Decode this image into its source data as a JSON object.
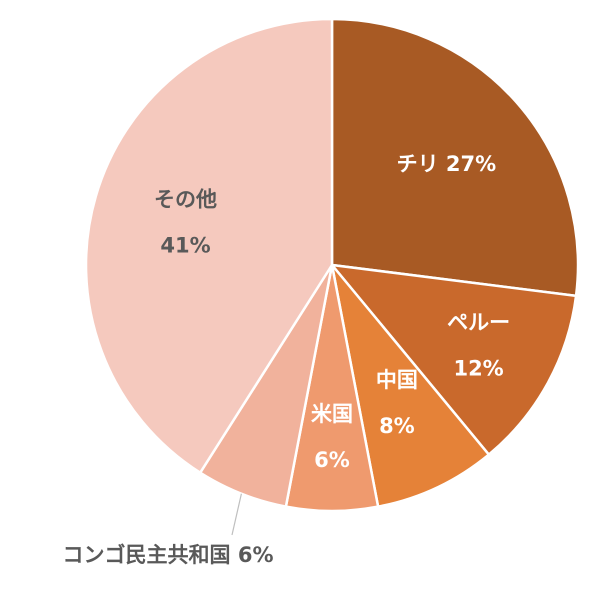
{
  "chart_data": {
    "type": "pie",
    "title": "",
    "start_angle_deg": 0,
    "direction": "clockwise",
    "slices": [
      {
        "name": "チリ",
        "value": 27,
        "label_line1": "チリ 27%",
        "label_line2": "",
        "color": "#A85A24",
        "text_color": "#ffffff",
        "outside": false
      },
      {
        "name": "ペルー",
        "value": 12,
        "label_line1": "ペルー",
        "label_line2": "12%",
        "color": "#C9692C",
        "text_color": "#ffffff",
        "outside": false
      },
      {
        "name": "中国",
        "value": 8,
        "label_line1": "中国",
        "label_line2": "8%",
        "color": "#E58238",
        "text_color": "#ffffff",
        "outside": false
      },
      {
        "name": "米国",
        "value": 6,
        "label_line1": "米国",
        "label_line2": "6%",
        "color": "#EF9A6E",
        "text_color": "#ffffff",
        "outside": false
      },
      {
        "name": "コンゴ民主共和国",
        "value": 6,
        "label_line1": "コンゴ民主共和国 6%",
        "label_line2": "",
        "color": "#F1B29C",
        "text_color": "#595959",
        "outside": true
      },
      {
        "name": "その他",
        "value": 41,
        "label_line1": "その他",
        "label_line2": "41%",
        "color": "#F5C9BE",
        "text_color": "#595959",
        "outside": false
      }
    ]
  }
}
